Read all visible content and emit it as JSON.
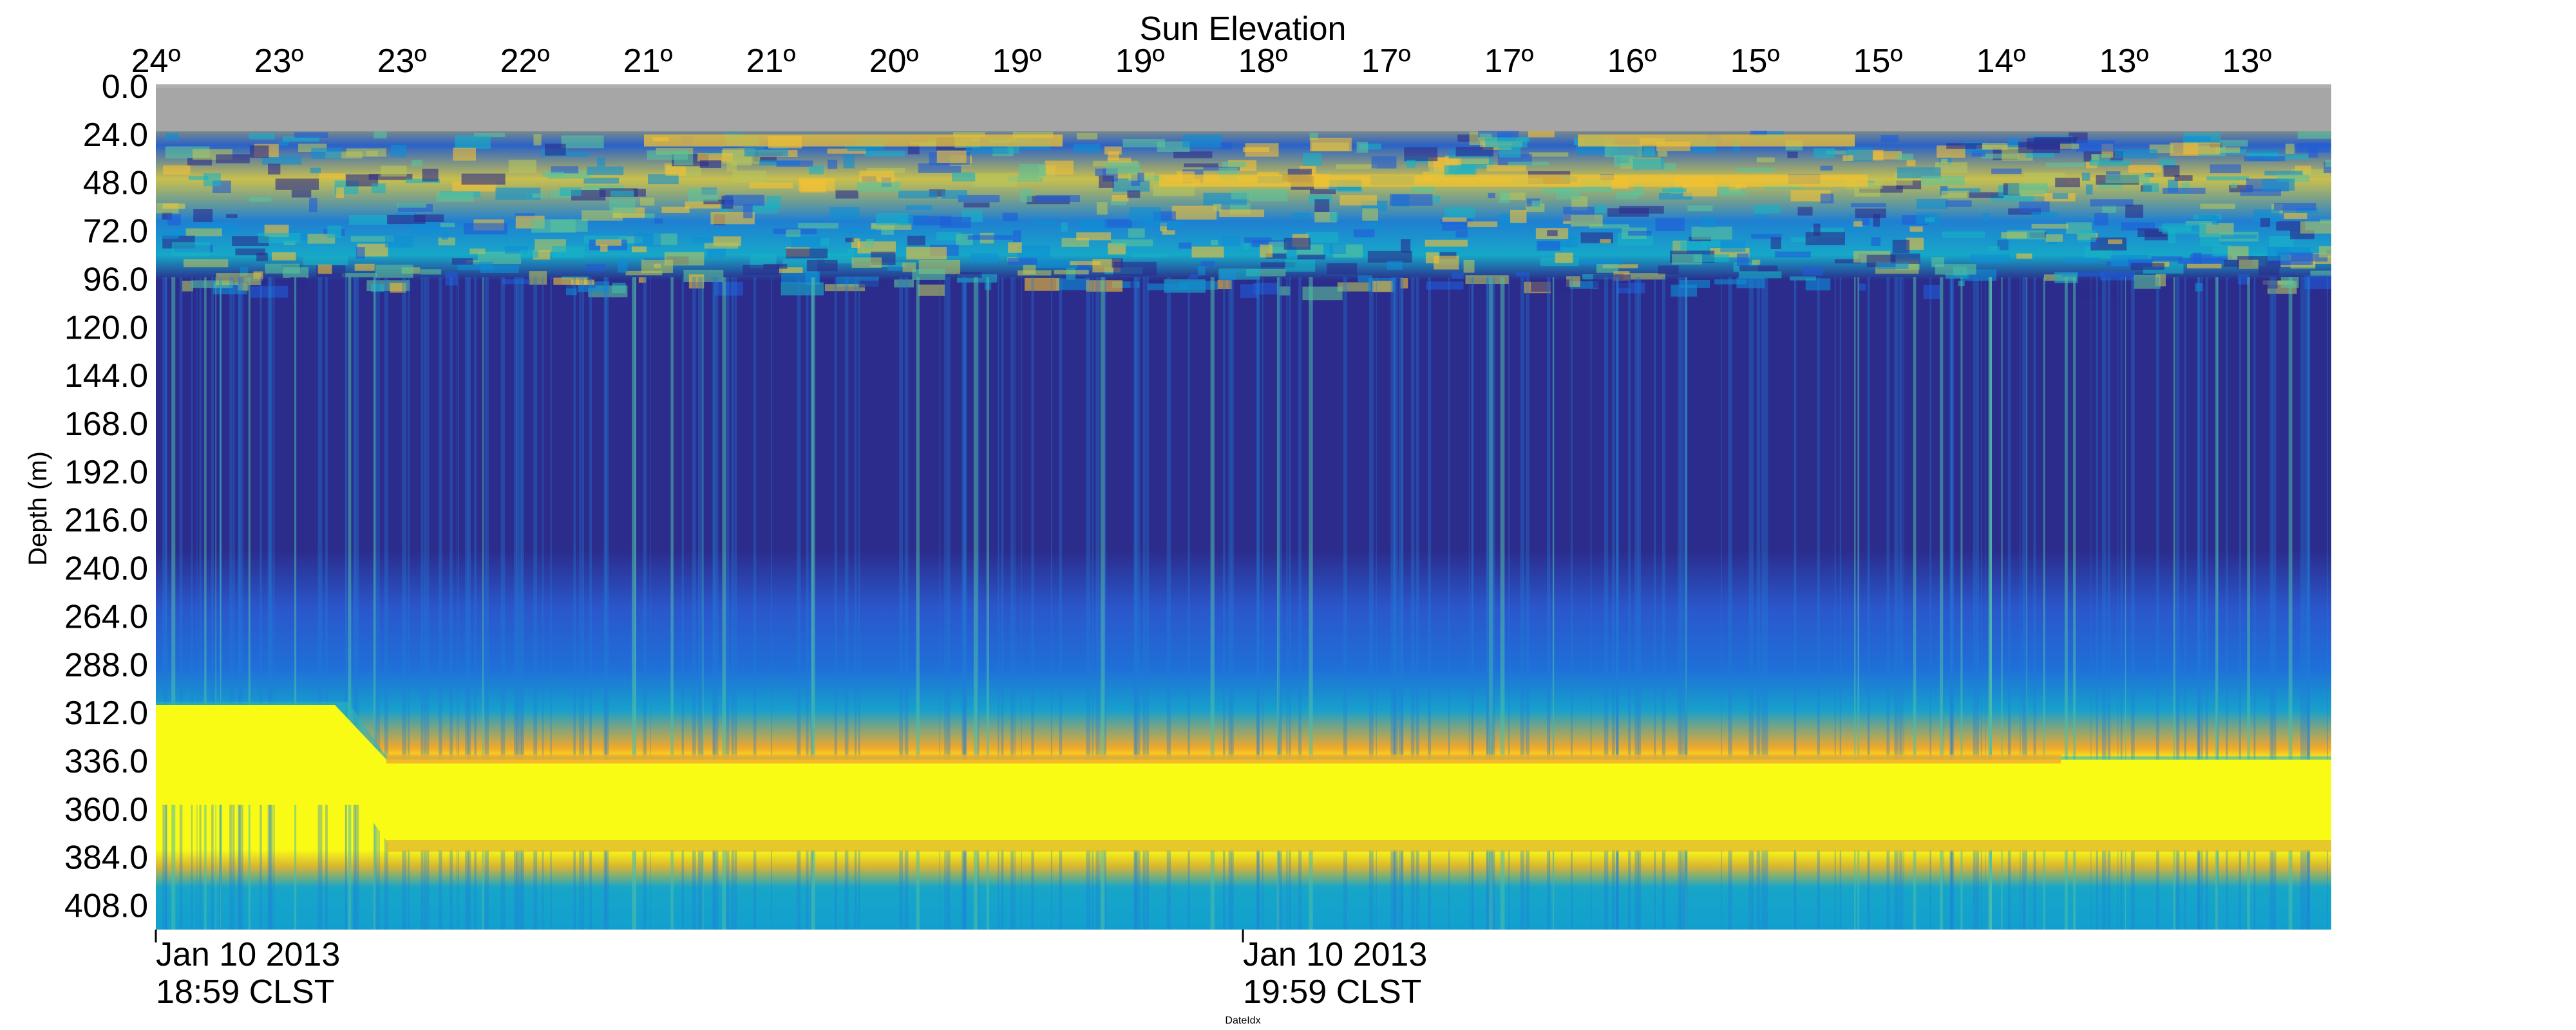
{
  "chart_data": {
    "type": "heatmap",
    "top_axis": {
      "label": "Sun Elevation",
      "tick_labels": [
        "24º",
        "23º",
        "23º",
        "22º",
        "21º",
        "21º",
        "20º",
        "19º",
        "19º",
        "18º",
        "17º",
        "17º",
        "16º",
        "15º",
        "15º",
        "14º",
        "13º",
        "13º"
      ]
    },
    "y_axis": {
      "label": "Depth (m)",
      "tick_labels": [
        "0.0",
        "24.0",
        "48.0",
        "72.0",
        "96.0",
        "120.0",
        "144.0",
        "168.0",
        "192.0",
        "216.0",
        "240.0",
        "264.0",
        "288.0",
        "312.0",
        "336.0",
        "360.0",
        "384.0",
        "408.0"
      ],
      "range": [
        0,
        420
      ]
    },
    "x_axis": {
      "label": "DateIdx",
      "tick_labels": [
        {
          "date": "Jan 10 2013",
          "time": "18:59 CLST"
        },
        {
          "date": "Jan 10 2013",
          "time": "19:59 CLST"
        }
      ],
      "time_range": [
        "2013-01-10 18:59",
        "2013-01-10 20:59"
      ]
    },
    "colormap": [
      "#2b2c8c",
      "#1f5cd8",
      "#0e8fd6",
      "#17b2c6",
      "#5cc39a",
      "#b7c45a",
      "#f7c232",
      "#f9fb14"
    ],
    "no_data_color": "#a6a6a6",
    "layers": [
      {
        "depth_range": [
          0,
          22
        ],
        "description": "no data"
      },
      {
        "depth_range": [
          22,
          100
        ],
        "level": 0.55
      },
      {
        "depth_range": [
          100,
          290
        ],
        "level": 0.05
      },
      {
        "depth_range": [
          290,
          325
        ],
        "level": 0.3
      },
      {
        "depth_range": [
          325,
          395
        ],
        "level": 1.0
      },
      {
        "depth_range": [
          395,
          420
        ],
        "level": 0.4
      }
    ]
  }
}
